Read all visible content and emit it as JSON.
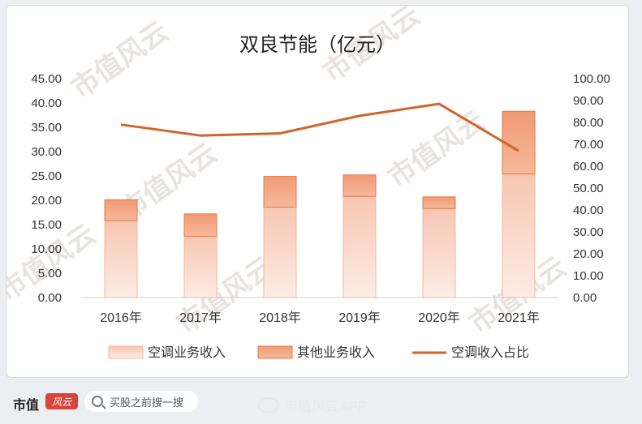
{
  "brand": {
    "name": "市值",
    "badge_text": "风云"
  },
  "search": {
    "placeholder": "买股之前搜一搜"
  },
  "weibo": {
    "handle": "市值风云APP"
  },
  "watermark": {
    "text": "市值风云"
  },
  "chart_data": {
    "type": "bar",
    "title": "双良节能（亿元）",
    "categories": [
      "2016年",
      "2017年",
      "2018年",
      "2019年",
      "2020年",
      "2021年"
    ],
    "stacked": true,
    "series": [
      {
        "name": "空调业务收入",
        "type": "bar",
        "axis": "left",
        "values": [
          15.8,
          12.6,
          18.6,
          20.8,
          18.3,
          25.4
        ],
        "color": "#f9d0c0"
      },
      {
        "name": "其他业务收入",
        "type": "bar",
        "axis": "left",
        "values": [
          4.3,
          4.6,
          6.3,
          4.4,
          2.4,
          12.9
        ],
        "color": "#f0a07a"
      },
      {
        "name": "空调收入占比",
        "type": "line",
        "axis": "right",
        "values": [
          79.0,
          74.0,
          75.0,
          83.0,
          88.5,
          67.0
        ],
        "color": "#d0652a"
      }
    ],
    "y_left": {
      "min": 0,
      "max": 45,
      "step": 5,
      "ticks": [
        "0.00",
        "5.00",
        "10.00",
        "15.00",
        "20.00",
        "25.00",
        "30.00",
        "35.00",
        "40.00",
        "45.00"
      ]
    },
    "y_right": {
      "min": 0,
      "max": 100,
      "step": 10,
      "ticks": [
        "0.00",
        "10.00",
        "20.00",
        "30.00",
        "40.00",
        "50.00",
        "60.00",
        "70.00",
        "80.00",
        "90.00",
        "100.00"
      ]
    },
    "grid": false,
    "legend_position": "bottom"
  }
}
